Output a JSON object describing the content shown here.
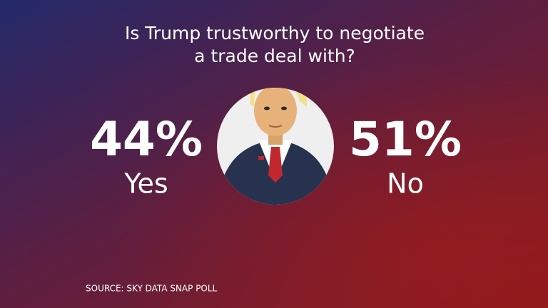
{
  "title": [
    "Is Trump trustworthy to negotiate",
    "a trade deal with?"
  ],
  "results": [
    {
      "value": "44%",
      "label": "Yes"
    },
    {
      "value": "51%",
      "label": "No"
    }
  ],
  "source": "SOURCE: SKY DATA SNAP POLL"
}
